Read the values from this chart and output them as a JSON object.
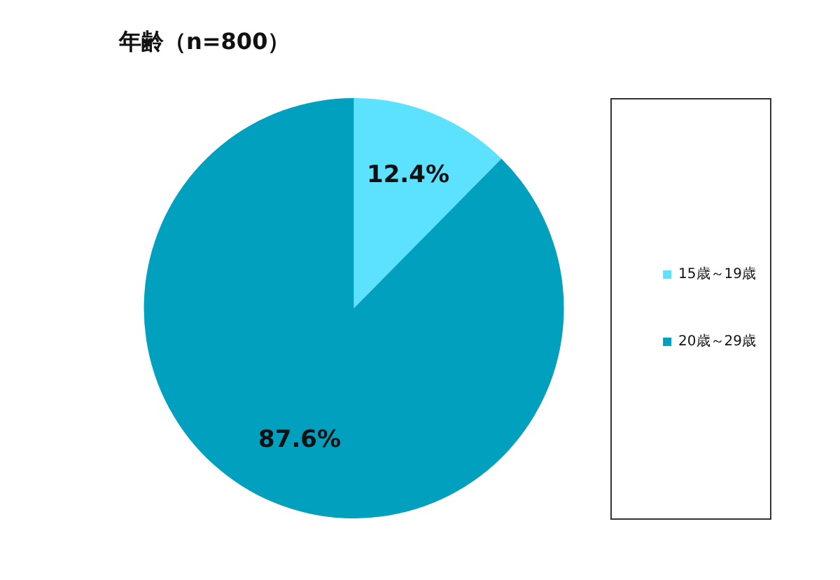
{
  "chart_data": {
    "type": "pie",
    "title": "年齢（n=800）",
    "categories": [
      "15歳～19歳",
      "20歳～29歳"
    ],
    "values": [
      12.4,
      87.6
    ],
    "value_labels": [
      "12.4%",
      "87.6%"
    ],
    "colors": [
      "#5ce1fe",
      "#00a0be"
    ],
    "legend": "right"
  }
}
